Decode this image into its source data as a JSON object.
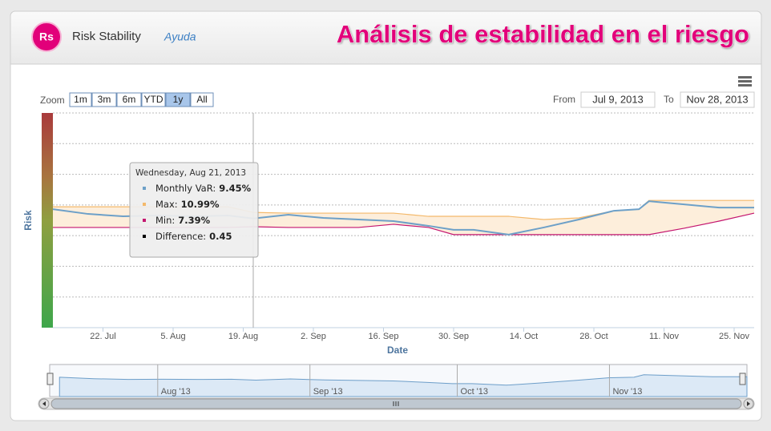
{
  "header": {
    "logo": "Rs",
    "title": "Risk Stability",
    "help": "Ayuda",
    "banner": "Análisis de estabilidad en el riesgo"
  },
  "range_selector": {
    "label": "Zoom",
    "buttons": [
      "1m",
      "3m",
      "6m",
      "YTD",
      "1y",
      "All"
    ],
    "selected": 4,
    "from_label": "From",
    "from": "Jul 9, 2013",
    "to_label": "To",
    "to": "Nov 28, 2013"
  },
  "tooltip": {
    "date": "Wednesday, Aug 21, 2013",
    "rows": [
      {
        "label": "Monthly VaR:",
        "value": "9.45%",
        "color": "#6da0c8"
      },
      {
        "label": "Max:",
        "value": "10.99%",
        "color": "#f4b96b"
      },
      {
        "label": "Min:",
        "value": "7.39%",
        "color": "#c4166f"
      },
      {
        "label": "Difference:",
        "value": "0.45",
        "color": "#000000"
      }
    ]
  },
  "chart_data": {
    "type": "line",
    "xlabel": "Date",
    "ylabel": "Risk",
    "x": [
      "2013-07-12",
      "2013-07-19",
      "2013-07-26",
      "2013-08-02",
      "2013-08-09",
      "2013-08-16",
      "2013-08-21",
      "2013-08-28",
      "2013-09-04",
      "2013-09-11",
      "2013-09-18",
      "2013-09-25",
      "2013-09-30",
      "2013-10-04",
      "2013-10-11",
      "2013-10-18",
      "2013-10-25",
      "2013-11-01",
      "2013-11-06",
      "2013-11-08",
      "2013-11-15",
      "2013-11-22",
      "2013-11-29"
    ],
    "series": [
      {
        "name": "Monthly VaR",
        "color": "#6da0c8",
        "values": [
          11.8,
          10.6,
          10.0,
          10.2,
          10.0,
          10.2,
          9.45,
          10.4,
          9.6,
          9.2,
          8.8,
          7.6,
          6.6,
          6.6,
          5.4,
          7.2,
          9.2,
          11.4,
          11.8,
          13.8,
          13.0,
          12.2,
          12.2
        ]
      },
      {
        "name": "Max",
        "color": "#f4b96b",
        "values": [
          12.4,
          12.4,
          12.4,
          12.4,
          12.4,
          12.4,
          10.99,
          10.8,
          10.8,
          10.8,
          10.8,
          10.0,
          10.0,
          10.0,
          10.0,
          9.2,
          9.6,
          11.4,
          11.8,
          14.0,
          14.0,
          14.0,
          14.0
        ]
      },
      {
        "name": "Min",
        "color": "#c4166f",
        "values": [
          7.2,
          7.2,
          7.2,
          7.2,
          7.2,
          7.2,
          7.39,
          7.2,
          7.2,
          7.2,
          8.0,
          7.2,
          5.4,
          5.4,
          5.4,
          5.4,
          5.4,
          5.4,
          5.4,
          5.4,
          7.0,
          8.8,
          10.8
        ]
      }
    ],
    "band_color": "#fdeedb",
    "xlim": [
      "2013-07-12",
      "2013-11-29"
    ],
    "ylim": [
      -18,
      36
    ],
    "xticks": [
      {
        "value": "2013-07-22",
        "label": "22. Jul"
      },
      {
        "value": "2013-08-05",
        "label": "5. Aug"
      },
      {
        "value": "2013-08-19",
        "label": "19. Aug"
      },
      {
        "value": "2013-09-02",
        "label": "2. Sep"
      },
      {
        "value": "2013-09-16",
        "label": "16. Sep"
      },
      {
        "value": "2013-09-30",
        "label": "30. Sep"
      },
      {
        "value": "2013-10-14",
        "label": "14. Oct"
      },
      {
        "value": "2013-10-28",
        "label": "28. Oct"
      },
      {
        "value": "2013-11-11",
        "label": "11. Nov"
      },
      {
        "value": "2013-11-25",
        "label": "25. Nov"
      }
    ],
    "crosshair": "2013-08-21",
    "navigator_xlim": [
      "2013-07-10",
      "2013-11-29"
    ],
    "navigator_ticks": [
      {
        "value": "2013-08-01",
        "label": "Aug '13"
      },
      {
        "value": "2013-09-01",
        "label": "Sep '13"
      },
      {
        "value": "2013-10-01",
        "label": "Oct '13"
      },
      {
        "value": "2013-11-01",
        "label": "Nov '13"
      }
    ],
    "grid": true
  }
}
